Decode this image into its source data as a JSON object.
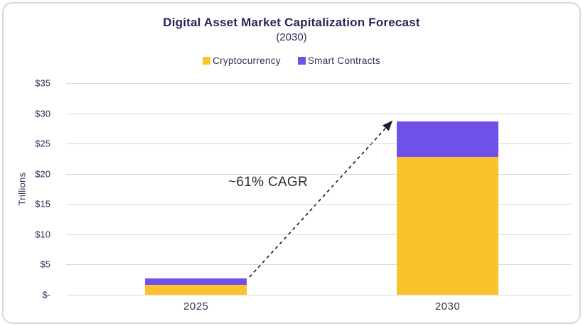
{
  "card": {
    "title": "Digital Asset Market Capitalization Forecast",
    "subtitle": "(2030)"
  },
  "chart_data": {
    "type": "bar",
    "stacked": true,
    "title": "Digital Asset Market Capitalization Forecast",
    "subtitle": "(2030)",
    "categories": [
      "2025",
      "2030"
    ],
    "series": [
      {
        "name": "Cryptocurrency",
        "color": "#fbc32b",
        "values": [
          1.6,
          22.8
        ]
      },
      {
        "name": "Smart Contracts",
        "color": "#6f51ea",
        "values": [
          1.1,
          5.8
        ]
      }
    ],
    "totals": [
      2.7,
      28.6
    ],
    "xlabel": "",
    "ylabel": "Trillions",
    "ylim": [
      0,
      35
    ],
    "y_ticks": [
      {
        "value": 35,
        "label": "$35"
      },
      {
        "value": 30,
        "label": "$30"
      },
      {
        "value": 25,
        "label": "$25"
      },
      {
        "value": 20,
        "label": "$20"
      },
      {
        "value": 15,
        "label": "$15"
      },
      {
        "value": 10,
        "label": "$10"
      },
      {
        "value": 5,
        "label": "$5"
      },
      {
        "value": 0,
        "label": "$-"
      }
    ],
    "grid": true,
    "legend_position": "top",
    "annotation": {
      "text": "~61% CAGR",
      "arrow_style": "dashed",
      "arrow_color": "#1f1f28",
      "arrow_from": "top of 2025 bar",
      "arrow_to": "top of 2030 bar"
    }
  }
}
